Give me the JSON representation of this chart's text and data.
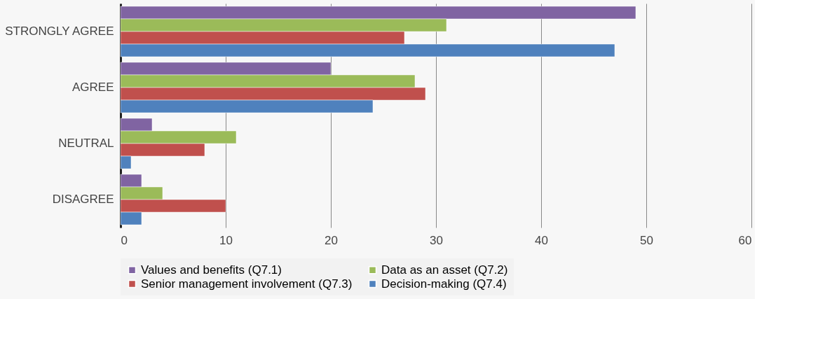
{
  "chart_data": {
    "type": "bar",
    "orientation": "horizontal",
    "categories": [
      "STRONGLY AGREE",
      "AGREE",
      "NEUTRAL",
      "DISAGREE"
    ],
    "series": [
      {
        "name": "Values and benefits (Q7.1)",
        "color": "#8064a2",
        "values": [
          49,
          20,
          3,
          2
        ]
      },
      {
        "name": "Data as an asset (Q7.2)",
        "color": "#9bbb59",
        "values": [
          31,
          28,
          11,
          4
        ]
      },
      {
        "name": "Senior management involvement (Q7.3)",
        "color": "#c0504d",
        "values": [
          27,
          29,
          8,
          10
        ]
      },
      {
        "name": "Decision-making (Q7.4)",
        "color": "#4f81bd",
        "values": [
          47,
          24,
          1,
          2
        ]
      }
    ],
    "xlim": [
      0,
      60
    ],
    "xticks": [
      0,
      10,
      20,
      30,
      40,
      50,
      60
    ],
    "grid": "x",
    "legend": "bottom"
  }
}
